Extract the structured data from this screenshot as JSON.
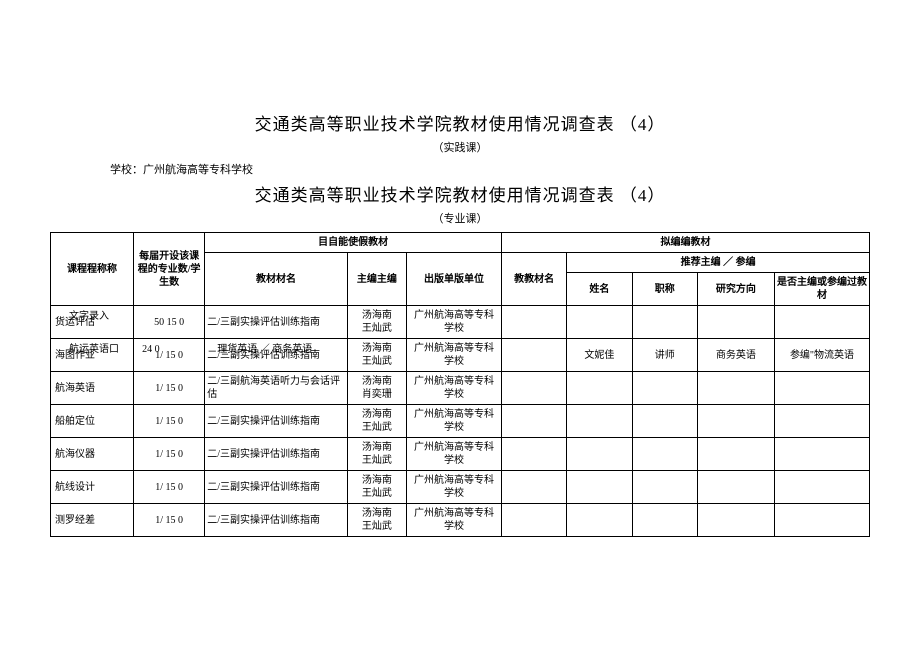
{
  "titles": {
    "line1": "交通类高等职业技术学院教材使用情况调查表 （4）",
    "sub1": "（实践课）",
    "school_label": "学校：广州航海高等专科学校",
    "line2": "交通类高等职业技术学院教材使用情况调查表 （4）",
    "sub2": "（专业课）"
  },
  "headers": {
    "course_name": "课程程称称",
    "major_count": "每届开设该课程的专业数/学生数",
    "current_group": "目自能使假教材",
    "planned_group": "拟编编教材",
    "textbook_name": "教材材名",
    "chief_editor": "主编主编",
    "publisher": "出版单版单位",
    "planned_name": "教教材名",
    "rec_group": "推荐主编 ／ 参编",
    "rec_name": "姓名",
    "rec_title": "职称",
    "rec_field": "研究方向",
    "rec_past": "是否主编或参编过教材"
  },
  "rows": [
    {
      "course": "货运评估",
      "overlay": "文字录入",
      "count": "50 15 0",
      "tb": "二/三副实操评估训练指南",
      "editor": "汤海南\n王灿武",
      "pub": "广州航海高等专科学校",
      "p_name": "",
      "r_name": "",
      "r_title": "",
      "r_field": "",
      "r_past": ""
    },
    {
      "course": "海图作业",
      "overlay": "航运英语口",
      "count": "1/ 15  0",
      "count_over": "24  0",
      "tb": "二/三副实操评估训练指南",
      "tb_over": "理货英语 ／ 商务英语",
      "editor": "汤海南\n王灿武",
      "pub": "广州航海高等专科学校",
      "p_name": "",
      "r_name": "文妮佳",
      "r_title": "讲师",
      "r_field": "商务英语",
      "r_past": "参编\"物流英语"
    },
    {
      "course": "航海英语",
      "count": "1/ 15  0",
      "tb": "二/三副航海英语听力与会话评估",
      "editor": "汤海南\n肖奕珊",
      "pub": "广州航海高等专科学校",
      "p_name": "",
      "r_name": "",
      "r_title": "",
      "r_field": "",
      "r_past": ""
    },
    {
      "course": "船舶定位",
      "count": "1/ 15  0",
      "tb": "二/三副实操评估训练指南",
      "editor": "汤海南\n王灿武",
      "pub": "广州航海高等专科学校",
      "p_name": "",
      "r_name": "",
      "r_title": "",
      "r_field": "",
      "r_past": ""
    },
    {
      "course": "航海仪器",
      "count": "1/ 15  0",
      "tb": "二/三副实操评估训练指南",
      "editor": "汤海南\n王灿武",
      "pub": "广州航海高等专科学校",
      "p_name": "",
      "r_name": "",
      "r_title": "",
      "r_field": "",
      "r_past": ""
    },
    {
      "course": "航线设计",
      "count": "1/ 15  0",
      "tb": "二/三副实操评估训练指南",
      "editor": "汤海南\n王灿武",
      "pub": "广州航海高等专科学校",
      "p_name": "",
      "r_name": "",
      "r_title": "",
      "r_field": "",
      "r_past": ""
    },
    {
      "course": "测罗经差",
      "count": "1/ 15  0",
      "tb": "二/三副实操评估训练指南",
      "editor": "汤海南\n王灿武",
      "pub": "广州航海高等专科学校",
      "p_name": "",
      "r_name": "",
      "r_title": "",
      "r_field": "",
      "r_past": ""
    }
  ],
  "colors": {
    "text": "#000000",
    "bg": "#ffffff",
    "border": "#000000"
  }
}
